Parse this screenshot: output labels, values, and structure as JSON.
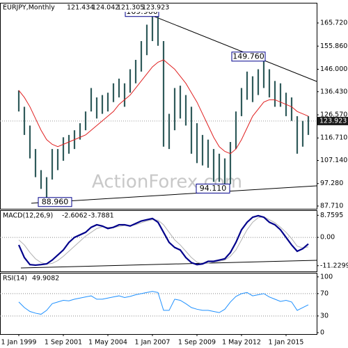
{
  "chart_data": [
    {
      "type": "ohlc",
      "title": "EURJPY,Monthly",
      "last_bar": {
        "open": 121.434,
        "high": 124.042,
        "low": 121.305,
        "close": 123.923
      },
      "last_label": "123.923",
      "watermark": "ActionForex.com",
      "color": "#2f5a5a",
      "ma_color": "#e02020",
      "high": [
        137,
        130,
        122,
        112,
        103,
        100,
        112,
        112,
        117,
        118,
        120,
        123,
        128,
        138,
        134,
        135,
        136,
        140,
        142,
        140,
        146,
        150,
        158,
        165,
        169,
        169.96,
        158,
        127,
        138,
        139,
        135,
        130,
        123,
        118,
        116,
        112,
        110,
        108,
        115,
        128,
        138,
        145,
        143,
        146,
        149.76,
        146,
        141,
        140,
        136,
        134,
        126,
        124,
        126
      ],
      "low": [
        128,
        118,
        108,
        100,
        95,
        88.96,
        99,
        103,
        107,
        110,
        112,
        116,
        120,
        128,
        125,
        127,
        128,
        132,
        134,
        130,
        136,
        140,
        145,
        152,
        158,
        156,
        113,
        112,
        120,
        125,
        122,
        110,
        106,
        105,
        104,
        98,
        98,
        94.11,
        97,
        112,
        126,
        133,
        132,
        135,
        138,
        134,
        130,
        130,
        126,
        124,
        110,
        113,
        118
      ],
      "ma": [
        137,
        134,
        130,
        125,
        120,
        116,
        114,
        113,
        114,
        115,
        116,
        117,
        118,
        120,
        122,
        124,
        126,
        128,
        131,
        133,
        135,
        138,
        141,
        144,
        147,
        149,
        150,
        148,
        146,
        143,
        140,
        136,
        132,
        127,
        122,
        117,
        113,
        111,
        110,
        112,
        116,
        121,
        126,
        129,
        132,
        133,
        133,
        132,
        131,
        130,
        128,
        127,
        126
      ],
      "annotations": [
        {
          "value": 169.96,
          "label": "169.960"
        },
        {
          "value": 149.76,
          "label": "149.760"
        },
        {
          "value": 94.11,
          "label": "94.110"
        },
        {
          "value": 88.96,
          "label": "88.960"
        }
      ],
      "ylim": [
        86.52,
        174.03
      ],
      "yticks": [
        {
          "value": 165.72,
          "label": "165.720"
        },
        {
          "value": 155.86,
          "label": "155.860"
        },
        {
          "value": 146,
          "label": "146.000"
        },
        {
          "value": 136.43,
          "label": "136.430"
        },
        {
          "value": 126.57,
          "label": "126.570"
        },
        {
          "value": 116.71,
          "label": "116.710"
        },
        {
          "value": 107.14,
          "label": "107.140"
        },
        {
          "value": 97.28,
          "label": "97.280"
        },
        {
          "value": 87.71,
          "label": "87.710"
        }
      ]
    },
    {
      "type": "line",
      "title": "MACD(12,26,9)",
      "series": [
        {
          "color": "#00008b",
          "values": [
            -3,
            -8,
            -10.8,
            -11,
            -10.8,
            -10.5,
            -9,
            -7,
            -5,
            -2,
            0,
            1,
            2,
            4,
            5,
            4.5,
            3.5,
            4,
            5,
            5,
            4.5,
            5.5,
            6.5,
            7,
            7.5,
            6,
            2,
            -2,
            -4,
            -5,
            -8,
            -10,
            -10.8,
            -10.5,
            -9.5,
            -9.5,
            -9,
            -8.5,
            -6,
            -2,
            3,
            6,
            8,
            8.6,
            8,
            6,
            5,
            3,
            0,
            -3,
            -5.5,
            -4.5,
            -2.6062
          ]
        },
        {
          "color": "#b0b0b0",
          "values": [
            -1,
            -3,
            -6,
            -8.5,
            -10,
            -10.6,
            -10.3,
            -9.2,
            -7.5,
            -5.5,
            -3.5,
            -1.5,
            0.5,
            2,
            3.5,
            4.2,
            4,
            4,
            4.3,
            4.7,
            4.7,
            5,
            5.8,
            6.5,
            7,
            6.8,
            5,
            2,
            -1,
            -3,
            -5.5,
            -8,
            -9.8,
            -10.5,
            -10.2,
            -9.8,
            -9.5,
            -9,
            -7.5,
            -5,
            -1,
            3,
            6,
            7.8,
            8.2,
            7,
            5.8,
            4,
            2,
            -0.5,
            -3.5,
            -4.2,
            -3.7881
          ]
        }
      ],
      "ylim": [
        -13.5,
        10.5
      ],
      "yticks": [
        8.7595,
        {
          "value": 0,
          "label": "0.00"
        },
        -11.2299
      ],
      "reference_lines": [
        0
      ]
    },
    {
      "type": "line",
      "title": "RSI(14)",
      "series": [
        {
          "color": "#1e90ff",
          "values": [
            55,
            45,
            38,
            35,
            33,
            40,
            52,
            55,
            58,
            57,
            60,
            62,
            64,
            66,
            60,
            60,
            62,
            64,
            66,
            63,
            65,
            68,
            70,
            72,
            74,
            72,
            40,
            40,
            60,
            58,
            52,
            45,
            42,
            40,
            40,
            38,
            36,
            42,
            55,
            65,
            70,
            72,
            66,
            68,
            70,
            64,
            60,
            56,
            58,
            55,
            40,
            45,
            49.9082
          ]
        }
      ],
      "ylim": [
        -2.5,
        106
      ],
      "yticks": [
        100,
        70,
        30,
        0
      ],
      "reference_lines": [
        70,
        30
      ],
      "categories": [
        "1 Jan 1999",
        null,
        null,
        null,
        null,
        null,
        null,
        null,
        "1 Sep 2001",
        null,
        null,
        null,
        null,
        null,
        null,
        null,
        "1 May 2004",
        null,
        null,
        null,
        null,
        null,
        null,
        null,
        "1 Jan 2007",
        null,
        null,
        null,
        null,
        null,
        null,
        null,
        "1 Sep 2009",
        null,
        null,
        null,
        null,
        null,
        null,
        null,
        "1 May 2012",
        null,
        null,
        null,
        null,
        null,
        null,
        null,
        "1 Jan 2015",
        null,
        null,
        null,
        null
      ]
    }
  ]
}
